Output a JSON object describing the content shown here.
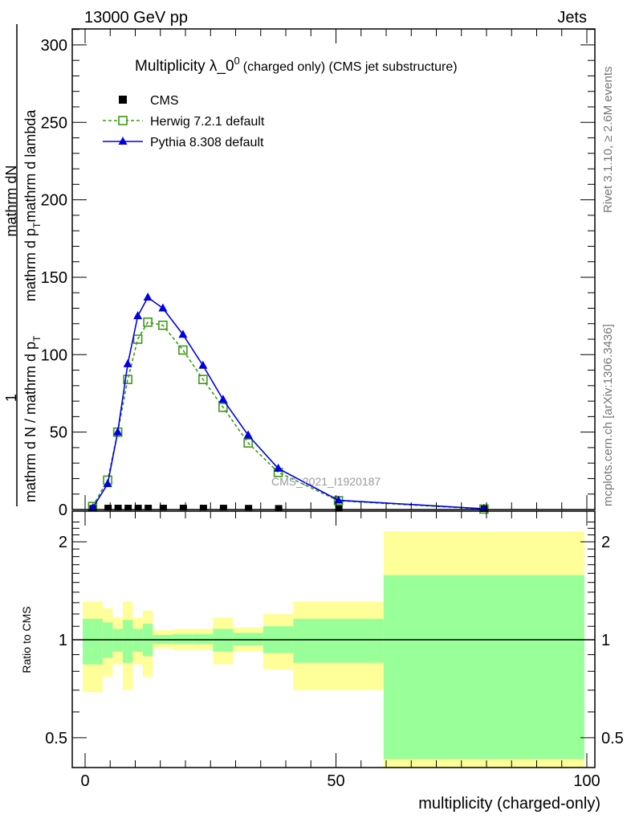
{
  "header": {
    "left": "13000 GeV pp",
    "right": "Jets"
  },
  "side": {
    "rivet": "Rivet 3.1.10, ≥ 2.6M events",
    "mcplots": "mcplots.cern.ch [arXiv:1306.3436]"
  },
  "ylabel": {
    "num": "1",
    "den": "mathrm d N / mathrm d p",
    "den_sub": "T",
    "num2": "mathrm dN",
    "den2": "mathrm d p",
    "den2_sub": "T",
    "den2_tail": "mathrm d lambda"
  },
  "watermark": "CMS_2021_I1920187",
  "chart_data": [
    {
      "type": "line",
      "title": "Multiplicity λ_0^0 (charged only) (CMS jet substructure)",
      "title_main": "Multiplicity λ_0",
      "title_sup": "0",
      "title_tail": "(charged only) (CMS jet substructure)",
      "xlim": [
        -2.5,
        100
      ],
      "ylim": [
        0,
        310
      ],
      "yticks": [
        0,
        50,
        100,
        150,
        200,
        250,
        300
      ],
      "legend_position": "top-left",
      "x": [
        1.5,
        4.5,
        6.5,
        8.5,
        10.5,
        12.5,
        15.5,
        19.5,
        23.5,
        27.5,
        32.5,
        38.5,
        50.5,
        79.5
      ],
      "bin_edges": [
        -0.5,
        3.5,
        5.5,
        7.5,
        9.5,
        11.5,
        13.5,
        17.5,
        21.5,
        25.5,
        29.5,
        35.5,
        41.5,
        59.5,
        99.5
      ],
      "series": [
        {
          "name": "CMS",
          "color": "#000000",
          "marker": "square-filled",
          "values": [
            0.3,
            0.5,
            0.5,
            0.5,
            0.5,
            0.5,
            0.5,
            0.5,
            0.5,
            0.5,
            0.4,
            0.3,
            0.1,
            0.01
          ]
        },
        {
          "name": "Herwig 7.2.1 default",
          "color": "#3c9a14",
          "marker": "square-open",
          "dashed": true,
          "values": [
            2,
            19,
            50,
            84,
            110,
            121,
            119,
            103,
            84,
            66,
            43,
            24,
            5.7,
            0.3
          ]
        },
        {
          "name": "Pythia 8.308 default",
          "color": "#0000e6",
          "marker": "triangle",
          "values": [
            1,
            16.6,
            50,
            94,
            125,
            137,
            130,
            113,
            93,
            71,
            48,
            26.5,
            6,
            0.5
          ]
        }
      ]
    },
    {
      "type": "area",
      "ylabel": "Ratio to CMS",
      "xlabel": "multiplicity (charged-only)",
      "xticks": [
        0,
        50,
        100
      ],
      "yticks": [
        0.5,
        1,
        2
      ],
      "ylim": [
        0.405,
        2.48
      ],
      "yscale": "log",
      "bin_edges": [
        -0.5,
        3.5,
        5.5,
        7.5,
        9.5,
        11.5,
        13.5,
        17.5,
        21.5,
        25.5,
        29.5,
        35.5,
        41.5,
        59.5,
        99.5
      ],
      "band_colors": {
        "outer": "#ffff99",
        "inner": "#99ff99"
      },
      "outer_lo": [
        0.69,
        0.77,
        0.84,
        0.7,
        0.84,
        0.77,
        0.94,
        0.93,
        0.93,
        0.84,
        0.92,
        0.81,
        0.7,
        0.4
      ],
      "outer_hi": [
        1.31,
        1.25,
        1.17,
        1.31,
        1.17,
        1.23,
        1.07,
        1.08,
        1.08,
        1.17,
        1.09,
        1.2,
        1.31,
        2.15
      ],
      "inner_lo": [
        0.84,
        0.88,
        0.92,
        0.85,
        0.92,
        0.89,
        0.97,
        0.97,
        0.97,
        0.92,
        0.96,
        0.91,
        0.85,
        0.43
      ],
      "inner_hi": [
        1.16,
        1.13,
        1.08,
        1.15,
        1.08,
        1.12,
        1.035,
        1.04,
        1.04,
        1.08,
        1.05,
        1.1,
        1.16,
        1.58
      ]
    }
  ]
}
